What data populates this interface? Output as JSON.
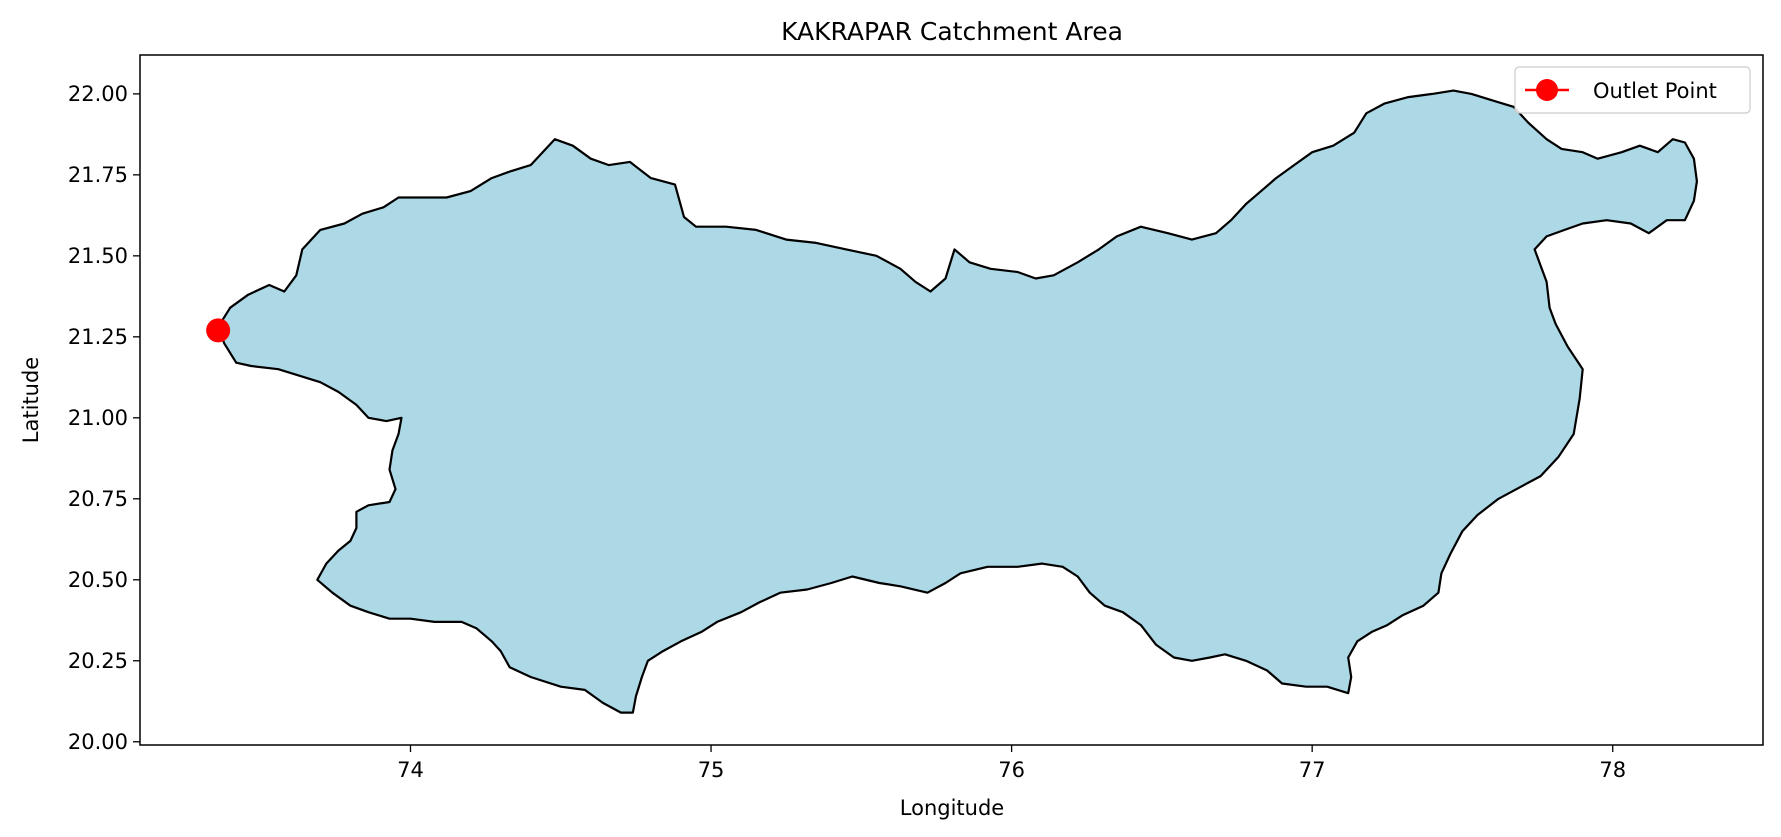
{
  "chart_data": {
    "type": "map",
    "title": "KAKRAPAR Catchment Area",
    "xlabel": "Longitude",
    "ylabel": "Latitude",
    "xlim": [
      73.1,
      78.5
    ],
    "ylim": [
      19.99,
      22.12
    ],
    "xticks": [
      74,
      75,
      76,
      77,
      78
    ],
    "yticks": [
      20.0,
      20.25,
      20.5,
      20.75,
      21.0,
      21.25,
      21.5,
      21.75,
      22.0
    ],
    "grid": false,
    "legend_position": "top-right",
    "legend": [
      {
        "label": "Outlet Point",
        "color": "#ff0000",
        "marker": "circle"
      }
    ],
    "outlet_point": {
      "lon": 73.36,
      "lat": 21.27
    },
    "catchment_style": {
      "fill": "#add8e6",
      "stroke": "#000000"
    },
    "catchment_boundary": [
      [
        73.36,
        21.28
      ],
      [
        73.4,
        21.34
      ],
      [
        73.46,
        21.38
      ],
      [
        73.53,
        21.41
      ],
      [
        73.58,
        21.39
      ],
      [
        73.62,
        21.44
      ],
      [
        73.64,
        21.52
      ],
      [
        73.7,
        21.58
      ],
      [
        73.78,
        21.6
      ],
      [
        73.84,
        21.63
      ],
      [
        73.91,
        21.65
      ],
      [
        73.96,
        21.68
      ],
      [
        74.05,
        21.68
      ],
      [
        74.12,
        21.68
      ],
      [
        74.2,
        21.7
      ],
      [
        74.27,
        21.74
      ],
      [
        74.33,
        21.76
      ],
      [
        74.4,
        21.78
      ],
      [
        74.48,
        21.86
      ],
      [
        74.54,
        21.84
      ],
      [
        74.6,
        21.8
      ],
      [
        74.66,
        21.78
      ],
      [
        74.73,
        21.79
      ],
      [
        74.8,
        21.74
      ],
      [
        74.88,
        21.72
      ],
      [
        74.91,
        21.62
      ],
      [
        74.95,
        21.59
      ],
      [
        75.05,
        21.59
      ],
      [
        75.15,
        21.58
      ],
      [
        75.25,
        21.55
      ],
      [
        75.35,
        21.54
      ],
      [
        75.45,
        21.52
      ],
      [
        75.55,
        21.5
      ],
      [
        75.63,
        21.46
      ],
      [
        75.68,
        21.42
      ],
      [
        75.73,
        21.39
      ],
      [
        75.78,
        21.43
      ],
      [
        75.81,
        21.52
      ],
      [
        75.86,
        21.48
      ],
      [
        75.93,
        21.46
      ],
      [
        76.02,
        21.45
      ],
      [
        76.08,
        21.43
      ],
      [
        76.14,
        21.44
      ],
      [
        76.22,
        21.48
      ],
      [
        76.29,
        21.52
      ],
      [
        76.35,
        21.56
      ],
      [
        76.43,
        21.59
      ],
      [
        76.52,
        21.57
      ],
      [
        76.6,
        21.55
      ],
      [
        76.68,
        21.57
      ],
      [
        76.73,
        21.61
      ],
      [
        76.78,
        21.66
      ],
      [
        76.83,
        21.7
      ],
      [
        76.88,
        21.74
      ],
      [
        76.94,
        21.78
      ],
      [
        77.0,
        21.82
      ],
      [
        77.07,
        21.84
      ],
      [
        77.14,
        21.88
      ],
      [
        77.18,
        21.94
      ],
      [
        77.24,
        21.97
      ],
      [
        77.32,
        21.99
      ],
      [
        77.4,
        22.0
      ],
      [
        77.47,
        22.01
      ],
      [
        77.53,
        22.0
      ],
      [
        77.6,
        21.98
      ],
      [
        77.67,
        21.96
      ],
      [
        77.72,
        21.91
      ],
      [
        77.78,
        21.86
      ],
      [
        77.83,
        21.83
      ],
      [
        77.9,
        21.82
      ],
      [
        77.95,
        21.8
      ],
      [
        78.03,
        21.82
      ],
      [
        78.09,
        21.84
      ],
      [
        78.15,
        21.82
      ],
      [
        78.2,
        21.86
      ],
      [
        78.24,
        21.85
      ],
      [
        78.27,
        21.8
      ],
      [
        78.28,
        21.73
      ],
      [
        78.27,
        21.67
      ],
      [
        78.24,
        21.61
      ],
      [
        78.18,
        21.61
      ],
      [
        78.12,
        21.57
      ],
      [
        78.06,
        21.6
      ],
      [
        77.98,
        21.61
      ],
      [
        77.9,
        21.6
      ],
      [
        77.84,
        21.58
      ],
      [
        77.78,
        21.56
      ],
      [
        77.74,
        21.52
      ],
      [
        77.76,
        21.47
      ],
      [
        77.78,
        21.42
      ],
      [
        77.79,
        21.34
      ],
      [
        77.81,
        21.29
      ],
      [
        77.85,
        21.22
      ],
      [
        77.9,
        21.15
      ],
      [
        77.89,
        21.06
      ],
      [
        77.87,
        20.95
      ],
      [
        77.82,
        20.88
      ],
      [
        77.76,
        20.82
      ],
      [
        77.7,
        20.79
      ],
      [
        77.62,
        20.75
      ],
      [
        77.55,
        20.7
      ],
      [
        77.5,
        20.65
      ],
      [
        77.46,
        20.58
      ],
      [
        77.43,
        20.52
      ],
      [
        77.42,
        20.46
      ],
      [
        77.37,
        20.42
      ],
      [
        77.3,
        20.39
      ],
      [
        77.25,
        20.36
      ],
      [
        77.2,
        20.34
      ],
      [
        77.15,
        20.31
      ],
      [
        77.12,
        20.26
      ],
      [
        77.13,
        20.2
      ],
      [
        77.12,
        20.15
      ],
      [
        77.05,
        20.17
      ],
      [
        76.98,
        20.17
      ],
      [
        76.9,
        20.18
      ],
      [
        76.85,
        20.22
      ],
      [
        76.78,
        20.25
      ],
      [
        76.71,
        20.27
      ],
      [
        76.66,
        20.26
      ],
      [
        76.6,
        20.25
      ],
      [
        76.54,
        20.26
      ],
      [
        76.48,
        20.3
      ],
      [
        76.43,
        20.36
      ],
      [
        76.37,
        20.4
      ],
      [
        76.31,
        20.42
      ],
      [
        76.26,
        20.46
      ],
      [
        76.22,
        20.51
      ],
      [
        76.17,
        20.54
      ],
      [
        76.1,
        20.55
      ],
      [
        76.02,
        20.54
      ],
      [
        75.92,
        20.54
      ],
      [
        75.83,
        20.52
      ],
      [
        75.78,
        20.49
      ],
      [
        75.72,
        20.46
      ],
      [
        75.63,
        20.48
      ],
      [
        75.56,
        20.49
      ],
      [
        75.47,
        20.51
      ],
      [
        75.4,
        20.49
      ],
      [
        75.32,
        20.47
      ],
      [
        75.23,
        20.46
      ],
      [
        75.16,
        20.43
      ],
      [
        75.1,
        20.4
      ],
      [
        75.02,
        20.37
      ],
      [
        74.97,
        20.34
      ],
      [
        74.9,
        20.31
      ],
      [
        74.84,
        20.28
      ],
      [
        74.79,
        20.25
      ],
      [
        74.77,
        20.2
      ],
      [
        74.75,
        20.14
      ],
      [
        74.74,
        20.09
      ],
      [
        74.7,
        20.09
      ],
      [
        74.64,
        20.12
      ],
      [
        74.58,
        20.16
      ],
      [
        74.5,
        20.17
      ],
      [
        74.4,
        20.2
      ],
      [
        74.33,
        20.23
      ],
      [
        74.3,
        20.28
      ],
      [
        74.27,
        20.31
      ],
      [
        74.22,
        20.35
      ],
      [
        74.17,
        20.37
      ],
      [
        74.08,
        20.37
      ],
      [
        74.0,
        20.38
      ],
      [
        73.93,
        20.38
      ],
      [
        73.86,
        20.4
      ],
      [
        73.8,
        20.42
      ],
      [
        73.74,
        20.46
      ],
      [
        73.69,
        20.5
      ],
      [
        73.72,
        20.55
      ],
      [
        73.76,
        20.59
      ],
      [
        73.8,
        20.62
      ],
      [
        73.82,
        20.66
      ],
      [
        73.82,
        20.71
      ],
      [
        73.86,
        20.73
      ],
      [
        73.93,
        20.74
      ],
      [
        73.95,
        20.78
      ],
      [
        73.93,
        20.84
      ],
      [
        73.94,
        20.9
      ],
      [
        73.96,
        20.95
      ],
      [
        73.97,
        21.0
      ],
      [
        73.92,
        20.99
      ],
      [
        73.86,
        21.0
      ],
      [
        73.82,
        21.04
      ],
      [
        73.76,
        21.08
      ],
      [
        73.7,
        21.11
      ],
      [
        73.63,
        21.13
      ],
      [
        73.56,
        21.15
      ],
      [
        73.47,
        21.16
      ],
      [
        73.42,
        21.17
      ],
      [
        73.38,
        21.23
      ]
    ]
  }
}
